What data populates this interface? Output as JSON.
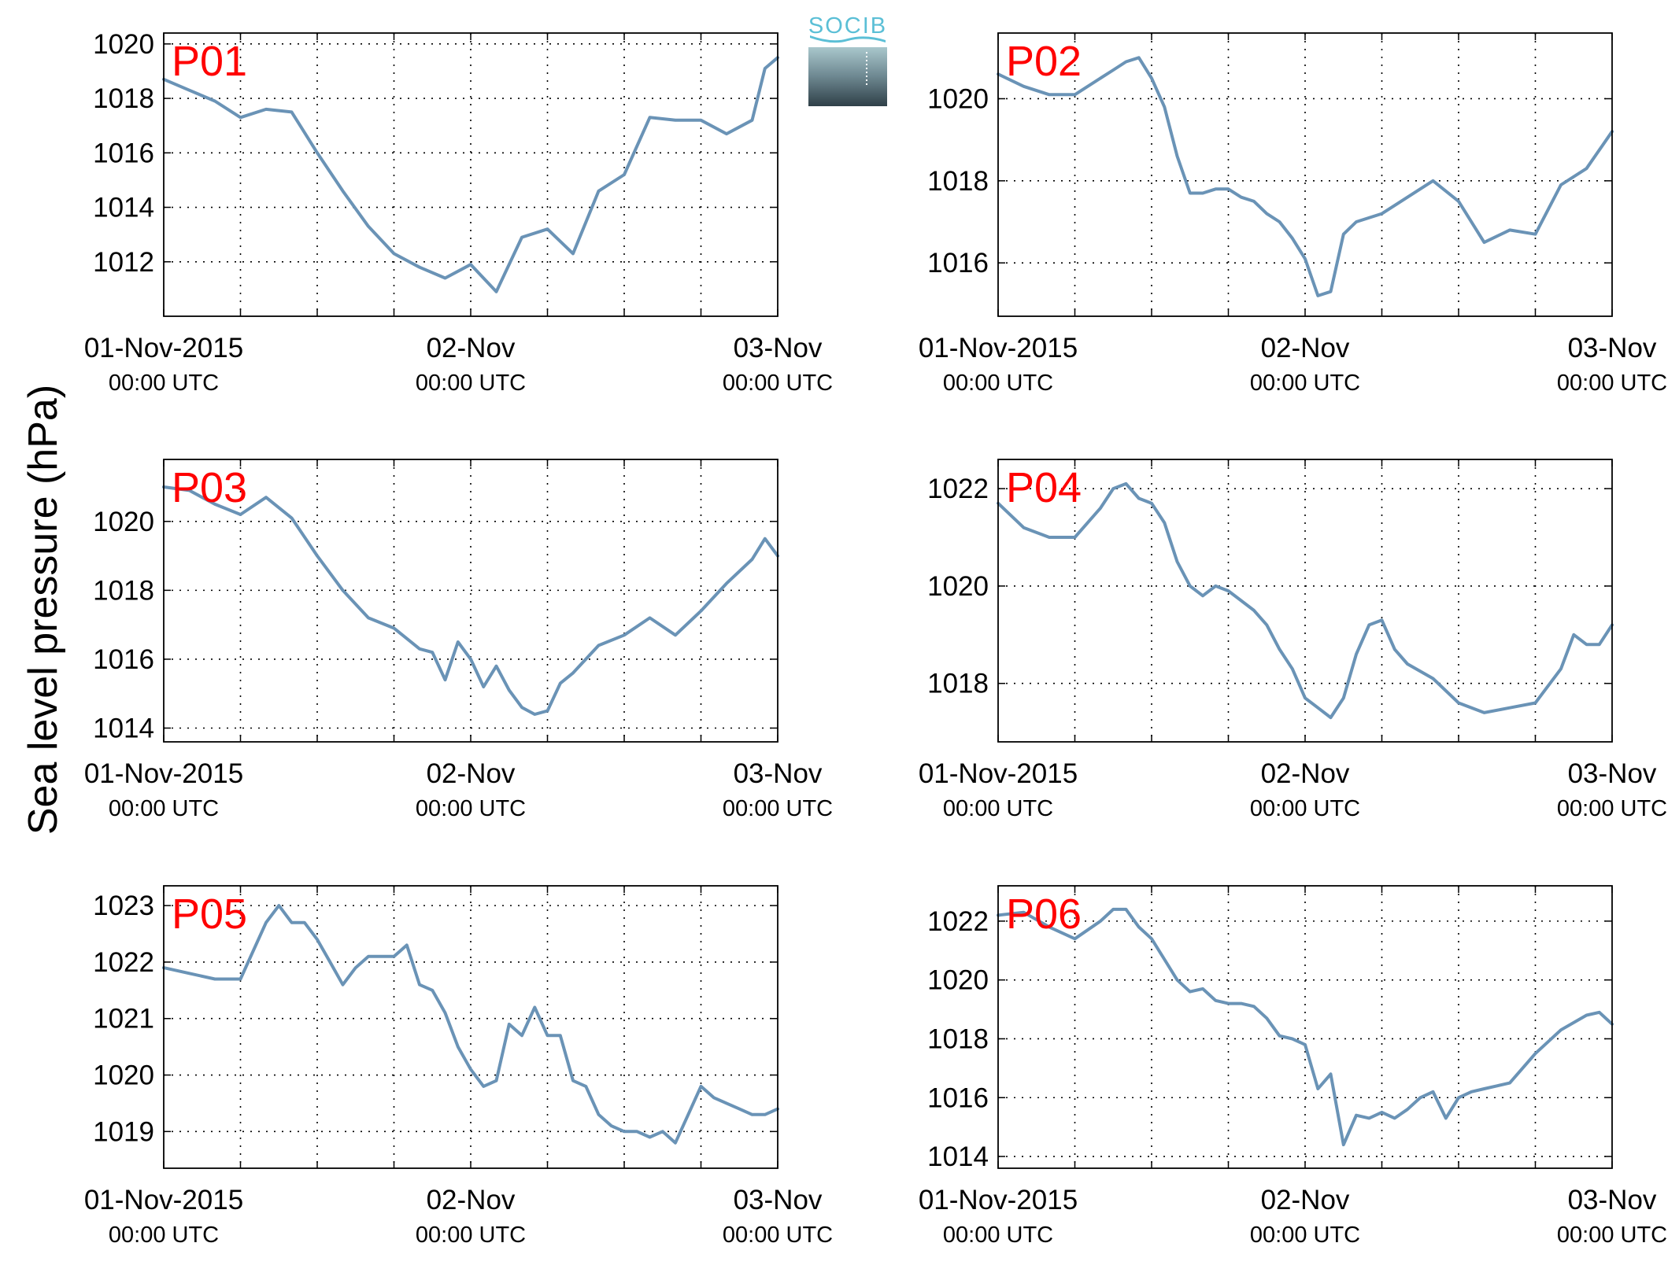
{
  "ylabel": "Sea level pressure (hPa)",
  "logo": {
    "text": "SOCIB"
  },
  "chart_data": [
    {
      "type": "line",
      "label": "P01",
      "x_ticks": [
        "01-Nov-2015",
        "02-Nov",
        "03-Nov"
      ],
      "x_ticks_sub": [
        "00:00 UTC",
        "00:00 UTC",
        "00:00 UTC"
      ],
      "xlim_hours": [
        0,
        48
      ],
      "ylim": [
        1010.0,
        1020.4
      ],
      "yticks": [
        1012,
        1014,
        1016,
        1018,
        1020
      ],
      "grid": true,
      "color": "#6a93b6",
      "x": [
        0,
        2,
        4,
        6,
        8,
        10,
        12,
        14,
        16,
        18,
        20,
        22,
        24,
        26,
        28,
        30,
        32,
        34,
        36,
        38,
        40,
        42,
        44,
        46,
        47,
        48
      ],
      "values": [
        1018.7,
        1018.3,
        1017.9,
        1017.3,
        1017.6,
        1017.5,
        1016.0,
        1014.6,
        1013.3,
        1012.3,
        1011.8,
        1011.4,
        1011.9,
        1010.9,
        1012.9,
        1013.2,
        1012.3,
        1014.6,
        1015.2,
        1017.3,
        1017.2,
        1017.2,
        1016.7,
        1017.2,
        1019.1,
        1019.5
      ]
    },
    {
      "type": "line",
      "label": "P02",
      "x_ticks": [
        "01-Nov-2015",
        "02-Nov",
        "03-Nov"
      ],
      "x_ticks_sub": [
        "00:00 UTC",
        "00:00 UTC",
        "00:00 UTC"
      ],
      "xlim_hours": [
        0,
        48
      ],
      "ylim": [
        1014.7,
        1021.6
      ],
      "yticks": [
        1016,
        1018,
        1020
      ],
      "grid": true,
      "color": "#6a93b6",
      "x": [
        0,
        2,
        4,
        6,
        8,
        9,
        10,
        11,
        12,
        13,
        14,
        15,
        16,
        17,
        18,
        19,
        20,
        21,
        22,
        23,
        24,
        25,
        26,
        27,
        28,
        30,
        32,
        34,
        36,
        38,
        40,
        42,
        44,
        46,
        48
      ],
      "values": [
        1020.6,
        1020.3,
        1020.1,
        1020.1,
        1020.5,
        1020.7,
        1020.9,
        1021.0,
        1020.5,
        1019.8,
        1018.6,
        1017.7,
        1017.7,
        1017.8,
        1017.8,
        1017.6,
        1017.5,
        1017.2,
        1017.0,
        1016.6,
        1016.1,
        1015.2,
        1015.3,
        1016.7,
        1017.0,
        1017.2,
        1017.6,
        1018.0,
        1017.5,
        1016.5,
        1016.8,
        1016.7,
        1017.9,
        1018.3,
        1019.2
      ]
    },
    {
      "type": "line",
      "label": "P03",
      "x_ticks": [
        "01-Nov-2015",
        "02-Nov",
        "03-Nov"
      ],
      "x_ticks_sub": [
        "00:00 UTC",
        "00:00 UTC",
        "00:00 UTC"
      ],
      "xlim_hours": [
        0,
        48
      ],
      "ylim": [
        1013.6,
        1021.8
      ],
      "yticks": [
        1014,
        1016,
        1018,
        1020
      ],
      "grid": true,
      "color": "#6a93b6",
      "x": [
        0,
        2,
        4,
        6,
        8,
        10,
        12,
        14,
        16,
        18,
        20,
        21,
        22,
        23,
        24,
        25,
        26,
        27,
        28,
        29,
        30,
        31,
        32,
        34,
        36,
        38,
        40,
        42,
        44,
        46,
        47,
        48
      ],
      "values": [
        1021.0,
        1020.9,
        1020.5,
        1020.2,
        1020.7,
        1020.1,
        1019.0,
        1018.0,
        1017.2,
        1016.9,
        1016.3,
        1016.2,
        1015.4,
        1016.5,
        1016.0,
        1015.2,
        1015.8,
        1015.1,
        1014.6,
        1014.4,
        1014.5,
        1015.3,
        1015.6,
        1016.4,
        1016.7,
        1017.2,
        1016.7,
        1017.4,
        1018.2,
        1018.9,
        1019.5,
        1019.0
      ]
    },
    {
      "type": "line",
      "label": "P04",
      "x_ticks": [
        "01-Nov-2015",
        "02-Nov",
        "03-Nov"
      ],
      "x_ticks_sub": [
        "00:00 UTC",
        "00:00 UTC",
        "00:00 UTC"
      ],
      "xlim_hours": [
        0,
        48
      ],
      "ylim": [
        1016.8,
        1022.6
      ],
      "yticks": [
        1018,
        1020,
        1022
      ],
      "grid": true,
      "color": "#6a93b6",
      "x": [
        0,
        2,
        4,
        6,
        8,
        9,
        10,
        11,
        12,
        13,
        14,
        15,
        16,
        17,
        18,
        19,
        20,
        21,
        22,
        23,
        24,
        25,
        26,
        27,
        28,
        29,
        30,
        31,
        32,
        34,
        36,
        38,
        40,
        42,
        44,
        45,
        46,
        47,
        48
      ],
      "values": [
        1021.7,
        1021.2,
        1021.0,
        1021.0,
        1021.6,
        1022.0,
        1022.1,
        1021.8,
        1021.7,
        1021.3,
        1020.5,
        1020.0,
        1019.8,
        1020.0,
        1019.9,
        1019.7,
        1019.5,
        1019.2,
        1018.7,
        1018.3,
        1017.7,
        1017.5,
        1017.3,
        1017.7,
        1018.6,
        1019.2,
        1019.3,
        1018.7,
        1018.4,
        1018.1,
        1017.6,
        1017.4,
        1017.5,
        1017.6,
        1018.3,
        1019.0,
        1018.8,
        1018.8,
        1019.2
      ]
    },
    {
      "type": "line",
      "label": "P05",
      "x_ticks": [
        "01-Nov-2015",
        "02-Nov",
        "03-Nov"
      ],
      "x_ticks_sub": [
        "00:00 UTC",
        "00:00 UTC",
        "00:00 UTC"
      ],
      "xlim_hours": [
        0,
        48
      ],
      "ylim": [
        1018.35,
        1023.35
      ],
      "yticks": [
        1019,
        1020,
        1021,
        1022,
        1023
      ],
      "grid": true,
      "color": "#6a93b6",
      "x": [
        0,
        2,
        4,
        6,
        8,
        9,
        10,
        11,
        12,
        13,
        14,
        15,
        16,
        17,
        18,
        19,
        20,
        21,
        22,
        23,
        24,
        25,
        26,
        27,
        28,
        29,
        30,
        31,
        32,
        33,
        34,
        35,
        36,
        37,
        38,
        39,
        40,
        41,
        42,
        43,
        44,
        45,
        46,
        47,
        48
      ],
      "values": [
        1021.9,
        1021.8,
        1021.7,
        1021.7,
        1022.7,
        1023.0,
        1022.7,
        1022.7,
        1022.4,
        1022.0,
        1021.6,
        1021.9,
        1022.1,
        1022.1,
        1022.1,
        1022.3,
        1021.6,
        1021.5,
        1021.1,
        1020.5,
        1020.1,
        1019.8,
        1019.9,
        1020.9,
        1020.7,
        1021.2,
        1020.7,
        1020.7,
        1019.9,
        1019.8,
        1019.3,
        1019.1,
        1019.0,
        1019.0,
        1018.9,
        1019.0,
        1018.8,
        1019.3,
        1019.8,
        1019.6,
        1019.5,
        1019.4,
        1019.3,
        1019.3,
        1019.4
      ]
    },
    {
      "type": "line",
      "label": "P06",
      "x_ticks": [
        "01-Nov-2015",
        "02-Nov",
        "03-Nov"
      ],
      "x_ticks_sub": [
        "00:00 UTC",
        "00:00 UTC",
        "00:00 UTC"
      ],
      "xlim_hours": [
        0,
        48
      ],
      "ylim": [
        1013.6,
        1023.2
      ],
      "yticks": [
        1014,
        1016,
        1018,
        1020,
        1022
      ],
      "grid": true,
      "color": "#6a93b6",
      "x": [
        0,
        2,
        4,
        6,
        8,
        9,
        10,
        11,
        12,
        13,
        14,
        15,
        16,
        17,
        18,
        19,
        20,
        21,
        22,
        23,
        24,
        25,
        26,
        27,
        28,
        29,
        30,
        31,
        32,
        33,
        34,
        35,
        36,
        37,
        38,
        39,
        40,
        42,
        44,
        46,
        47,
        48
      ],
      "values": [
        1022.2,
        1022.3,
        1021.8,
        1021.4,
        1022.0,
        1022.4,
        1022.4,
        1021.8,
        1021.4,
        1020.7,
        1020.0,
        1019.6,
        1019.7,
        1019.3,
        1019.2,
        1019.2,
        1019.1,
        1018.7,
        1018.1,
        1018.0,
        1017.8,
        1016.3,
        1016.8,
        1014.4,
        1015.4,
        1015.3,
        1015.5,
        1015.3,
        1015.6,
        1016.0,
        1016.2,
        1015.3,
        1016.0,
        1016.2,
        1016.3,
        1016.4,
        1016.5,
        1017.5,
        1018.3,
        1018.8,
        1018.9,
        1018.5
      ]
    }
  ]
}
